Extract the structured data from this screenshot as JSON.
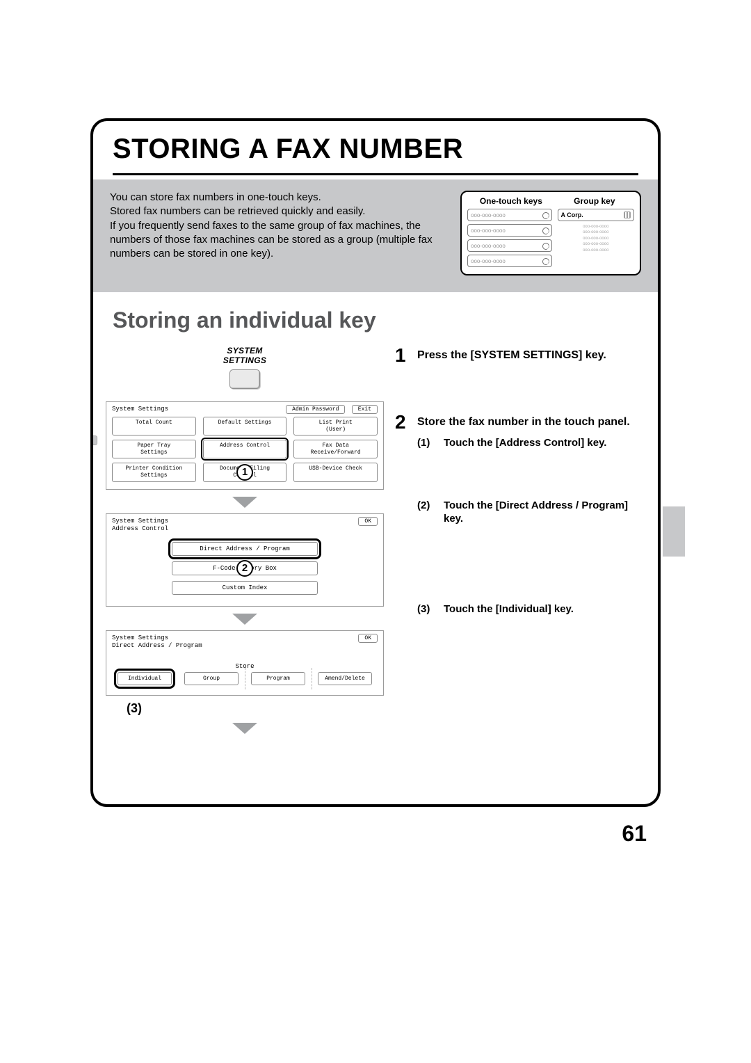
{
  "page_number": "61",
  "title": "STORING A FAX NUMBER",
  "intro_lines": [
    "You can store fax numbers in one-touch keys.",
    "Stored fax numbers can be retrieved quickly and easily.",
    "If you frequently send faxes to the same group of fax machines, the numbers of those fax machines can be stored as a group (multiple fax numbers can be stored in one key)."
  ],
  "keys_card": {
    "left_header": "One-touch keys",
    "right_header": "Group key",
    "onetouch_label": "ooo-ooo-oooo",
    "group_label": "A Corp.",
    "group_numbers": [
      "ooo-ooo-oooo",
      "ooo-ooo-oooo",
      "ooo-ooo-oooo",
      "ooo-ooo-oooo",
      "ooo-ooo-oooo"
    ]
  },
  "sub_heading": "Storing an individual key",
  "sys_settings_label_1": "SYSTEM",
  "sys_settings_label_2": "SETTINGS",
  "steps": {
    "s1": {
      "num": "1",
      "title": "Press the [SYSTEM SETTINGS] key."
    },
    "s2": {
      "num": "2",
      "title": "Store the fax number in the touch panel.",
      "subs": {
        "a": {
          "n": "(1)",
          "t": "Touch the [Address Control] key."
        },
        "b": {
          "n": "(2)",
          "t": "Touch the [Direct Address / Program] key."
        },
        "c": {
          "n": "(3)",
          "t": "Touch the [Individual] key."
        }
      }
    }
  },
  "panel1": {
    "title": "System Settings",
    "buttons": {
      "admin": "Admin Password",
      "exit": "Exit",
      "total_count": "Total Count",
      "default_settings": "Default Settings",
      "list_print": "List Print\n(User)",
      "paper_tray": "Paper Tray\nSettings",
      "address_control": "Address Control",
      "fax_data": "Fax Data\nReceive/Forward",
      "printer_cond": "Printer Condition\nSettings",
      "doc_filing": "Document Filing\nControl",
      "usb": "USB-Device Check"
    },
    "callout": "1"
  },
  "panel2": {
    "title": "System Settings",
    "subtitle": "Address Control",
    "ok": "OK",
    "items": {
      "direct": "Direct Address / Program",
      "fcode": "F-Code Memory Box",
      "custom": "Custom Index"
    },
    "callout": "2"
  },
  "panel3": {
    "title": "System Settings",
    "subtitle": "Direct Address / Program",
    "ok": "OK",
    "store": "Store",
    "items": {
      "individual": "Individual",
      "group": "Group",
      "program": "Program",
      "amend": "Amend/Delete"
    },
    "callout": "(3)"
  },
  "colors": {
    "band_gray": "#c7c8ca",
    "heading_gray": "#565759",
    "arrow_gray": "#9fa1a3"
  }
}
